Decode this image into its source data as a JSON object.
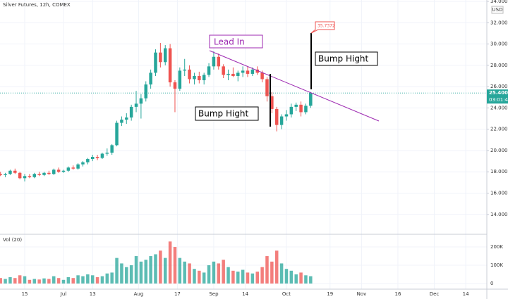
{
  "chart_data": {
    "type": "candlestick",
    "title": "Silver Futures, 12h, COMEX",
    "currency": "USD",
    "volume_title": "Vol (20)",
    "last_price_label": "25.4000",
    "countdown": "03:01:46",
    "annotations": [
      "Lead In",
      "Bump Hight",
      "Bump Hight",
      "35.7372"
    ],
    "up_color": "#26a69a",
    "down_color": "#ef5350",
    "grid": true,
    "xlim": [
      3.8,
      204.7
    ],
    "xticks": [
      {
        "value": 14,
        "label": "15"
      },
      {
        "value": 30,
        "label": "Jul"
      },
      {
        "value": 42,
        "label": "13"
      },
      {
        "value": 61,
        "label": "Aug"
      },
      {
        "value": 77,
        "label": "17"
      },
      {
        "value": 92,
        "label": "Sep"
      },
      {
        "value": 105,
        "label": "14"
      },
      {
        "value": 122,
        "label": "Oct"
      },
      {
        "value": 140,
        "label": "19"
      },
      {
        "value": 153,
        "label": "Nov"
      },
      {
        "value": 168,
        "label": "16"
      },
      {
        "value": 183,
        "label": "Dec"
      },
      {
        "value": 196,
        "label": "14"
      }
    ],
    "ylim": [
      12.4,
      34.0
    ],
    "yticks": [
      {
        "value": 14,
        "label": "14.0000"
      },
      {
        "value": 16,
        "label": "16.0000"
      },
      {
        "value": 18,
        "label": "18.0000"
      },
      {
        "value": 20,
        "label": "20.0000"
      },
      {
        "value": 22,
        "label": "22.0000"
      },
      {
        "value": 24,
        "label": "24.0000"
      },
      {
        "value": 26,
        "label": "26.0000"
      },
      {
        "value": 28,
        "label": "28.0000"
      },
      {
        "value": 30,
        "label": "30.0000"
      },
      {
        "value": 32,
        "label": "32.0000"
      },
      {
        "value": 34,
        "label": "34.0000"
      }
    ],
    "vol_ylim": [
      -27000,
      258000
    ],
    "vol_yticks": [
      0,
      {
        "value": 100000,
        "label": "100K"
      },
      {
        "value": 200000,
        "label": "200K"
      }
    ],
    "x": [
      4,
      6,
      8,
      10,
      12,
      14,
      16,
      18,
      20,
      22,
      24,
      26,
      28,
      30,
      32,
      34,
      36,
      38,
      40,
      42,
      44,
      46,
      48,
      50,
      52,
      54,
      56,
      58,
      60,
      62,
      64,
      66,
      68,
      70,
      72,
      74,
      76,
      78,
      80,
      82,
      84,
      86,
      88,
      90,
      92,
      94,
      96,
      98,
      100,
      102,
      104,
      106,
      108,
      110,
      112,
      114,
      116,
      118,
      120,
      122,
      124,
      126,
      128,
      130,
      132
    ],
    "open": [
      17.8,
      17.7,
      17.8,
      18.1,
      17.9,
      17.4,
      17.6,
      17.5,
      17.8,
      17.7,
      17.9,
      17.8,
      18.2,
      18.0,
      18.1,
      18.4,
      18.3,
      18.7,
      18.9,
      19.2,
      19.4,
      19.3,
      19.7,
      19.8,
      20.5,
      22.6,
      22.9,
      23.1,
      24.1,
      24.4,
      24.9,
      26.2,
      27.3,
      29.2,
      28.3,
      29.6,
      26.4,
      25.8,
      27.5,
      27.6,
      26.7,
      27.0,
      26.6,
      27.1,
      27.9,
      28.8,
      27.9,
      27.1,
      27.2,
      27.0,
      27.3,
      27.5,
      27.2,
      27.6,
      27.3,
      26.7,
      25.1,
      23.9,
      22.4,
      23.2,
      23.4,
      24.1,
      24.3,
      23.6,
      24.2
    ],
    "high": [
      18.0,
      17.9,
      18.2,
      18.3,
      18.0,
      17.8,
      17.8,
      17.9,
      18.0,
      18.0,
      18.1,
      18.3,
      18.4,
      18.2,
      18.5,
      18.6,
      18.8,
      19.0,
      19.3,
      19.6,
      19.6,
      19.8,
      20.2,
      20.6,
      22.8,
      23.2,
      23.5,
      24.3,
      25.6,
      25.3,
      26.5,
      27.6,
      29.5,
      30.1,
      29.9,
      30.0,
      26.6,
      27.8,
      28.6,
      28.0,
      27.3,
      27.4,
      27.3,
      28.2,
      29.3,
      29.1,
      28.1,
      27.6,
      27.8,
      27.5,
      27.9,
      27.9,
      27.8,
      27.9,
      27.5,
      26.9,
      25.5,
      24.1,
      23.4,
      23.8,
      24.4,
      24.5,
      24.6,
      24.4,
      25.5
    ],
    "low": [
      17.6,
      17.5,
      17.7,
      17.8,
      17.3,
      17.1,
      17.4,
      17.4,
      17.6,
      17.6,
      17.7,
      17.7,
      17.9,
      17.9,
      18.0,
      18.2,
      18.2,
      18.5,
      18.7,
      19.0,
      19.1,
      19.2,
      19.5,
      19.6,
      20.4,
      22.3,
      22.5,
      22.8,
      23.6,
      23.0,
      24.6,
      25.8,
      27.0,
      27.8,
      28.0,
      26.0,
      23.6,
      25.6,
      27.0,
      26.3,
      26.2,
      26.3,
      26.2,
      26.9,
      27.6,
      27.6,
      26.8,
      26.6,
      26.9,
      26.5,
      26.9,
      26.9,
      27.0,
      27.1,
      26.4,
      24.6,
      23.5,
      21.8,
      22.0,
      22.8,
      23.1,
      23.7,
      23.2,
      23.4,
      24.0
    ],
    "close": [
      17.7,
      17.8,
      18.1,
      17.9,
      17.4,
      17.6,
      17.5,
      17.8,
      17.7,
      17.9,
      17.8,
      18.2,
      18.0,
      18.1,
      18.4,
      18.3,
      18.7,
      18.9,
      19.2,
      19.4,
      19.3,
      19.7,
      19.8,
      20.5,
      22.6,
      22.9,
      23.1,
      24.1,
      24.4,
      24.9,
      26.2,
      27.3,
      29.2,
      28.3,
      29.6,
      26.4,
      25.8,
      27.5,
      27.6,
      26.7,
      27.0,
      26.6,
      27.1,
      27.9,
      28.8,
      27.9,
      27.1,
      27.2,
      27.0,
      27.3,
      27.5,
      27.2,
      27.6,
      27.3,
      26.7,
      25.1,
      23.9,
      22.4,
      23.2,
      23.4,
      24.1,
      24.3,
      23.6,
      24.2,
      25.4
    ],
    "volume": [
      30000,
      25000,
      35000,
      30000,
      45000,
      40000,
      20000,
      25000,
      22000,
      28000,
      25000,
      40000,
      30000,
      20000,
      35000,
      30000,
      45000,
      40000,
      50000,
      45000,
      35000,
      40000,
      55000,
      60000,
      140000,
      110000,
      90000,
      100000,
      150000,
      120000,
      130000,
      150000,
      160000,
      180000,
      140000,
      230000,
      200000,
      140000,
      120000,
      110000,
      80000,
      70000,
      60000,
      100000,
      120000,
      110000,
      130000,
      90000,
      70000,
      65000,
      75000,
      60000,
      55000,
      65000,
      90000,
      150000,
      120000,
      180000,
      110000,
      80000,
      70000,
      50000,
      60000,
      45000,
      40000
    ]
  }
}
